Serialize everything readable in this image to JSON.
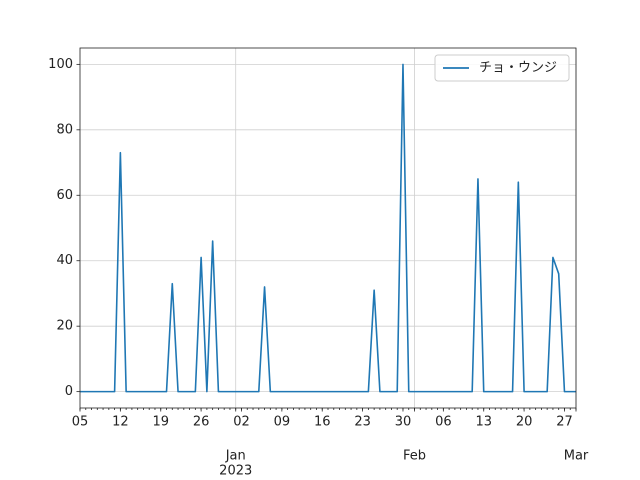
{
  "chart_data": {
    "type": "line",
    "x": [
      "2022-12-05",
      "2022-12-11",
      "2022-12-12",
      "2022-12-13",
      "2022-12-20",
      "2022-12-21",
      "2022-12-22",
      "2022-12-25",
      "2022-12-26",
      "2022-12-27",
      "2022-12-28",
      "2022-12-29",
      "2023-01-05",
      "2023-01-06",
      "2023-01-07",
      "2023-01-24",
      "2023-01-25",
      "2023-01-26",
      "2023-01-29",
      "2023-01-30",
      "2023-01-31",
      "2023-02-11",
      "2023-02-12",
      "2023-02-13",
      "2023-02-18",
      "2023-02-19",
      "2023-02-20",
      "2023-02-24",
      "2023-02-25",
      "2023-02-26",
      "2023-02-27",
      "2023-03-01"
    ],
    "series": [
      {
        "name": "チョ・ウンジ",
        "color": "#1f77b4",
        "values": [
          0,
          0,
          73,
          0,
          0,
          33,
          0,
          0,
          41,
          0,
          46,
          0,
          0,
          32,
          0,
          0,
          31,
          0,
          0,
          100,
          0,
          0,
          65,
          0,
          0,
          64,
          0,
          0,
          41,
          36,
          0,
          0
        ]
      }
    ],
    "xlim": [
      "2022-12-05",
      "2023-03-01"
    ],
    "xticks": [
      {
        "value": "2022-12-05",
        "label": "05"
      },
      {
        "value": "2022-12-12",
        "label": "12"
      },
      {
        "value": "2022-12-19",
        "label": "19"
      },
      {
        "value": "2022-12-26",
        "label": "26"
      },
      {
        "value": "2023-01-01",
        "label": "Jan"
      },
      {
        "value": "2023-01-02",
        "label": "02"
      },
      {
        "value": "2023-01-09",
        "label": "09"
      },
      {
        "value": "2023-01-16",
        "label": "16"
      },
      {
        "value": "2023-01-23",
        "label": "23"
      },
      {
        "value": "2023-01-30",
        "label": "30"
      },
      {
        "value": "2023-02-01",
        "label": "Feb"
      },
      {
        "value": "2023-02-06",
        "label": "06"
      },
      {
        "value": "2023-02-13",
        "label": "13"
      },
      {
        "value": "2023-02-20",
        "label": "20"
      },
      {
        "value": "2023-02-27",
        "label": "27"
      },
      {
        "value": "2023-03-01",
        "label": "Mar"
      }
    ],
    "year_label": "2023",
    "ylim": [
      -5,
      105
    ],
    "yticks": [
      0,
      20,
      40,
      60,
      80,
      100
    ],
    "grid": true,
    "legend": "upper right"
  }
}
